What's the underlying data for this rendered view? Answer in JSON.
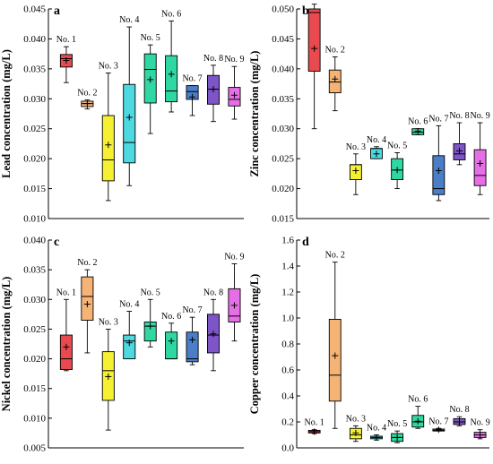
{
  "chart_data": [
    {
      "panel": "a",
      "type": "box",
      "ylabel": "Lead concentration (mg/L)",
      "ylim": [
        0.01,
        0.045
      ],
      "yticks": [
        "0.010",
        "0.015",
        "0.020",
        "0.025",
        "0.030",
        "0.035",
        "0.040",
        "0.045"
      ],
      "categories": [
        "No. 1",
        "No. 2",
        "No. 3",
        "No. 4",
        "No. 5",
        "No. 6",
        "No. 7",
        "No. 8",
        "No. 9"
      ],
      "boxes": [
        {
          "min": 0.0327,
          "q1": 0.0353,
          "median": 0.0367,
          "q3": 0.0374,
          "max": 0.0387,
          "mean": 0.0364,
          "color": "#e84a4f"
        },
        {
          "min": 0.0283,
          "q1": 0.0287,
          "median": 0.0292,
          "q3": 0.0296,
          "max": 0.0298,
          "mean": 0.0292,
          "color": "#f5b376"
        },
        {
          "min": 0.013,
          "q1": 0.0163,
          "median": 0.0198,
          "q3": 0.0272,
          "max": 0.0343,
          "mean": 0.0223,
          "color": "#f5f032"
        },
        {
          "min": 0.0155,
          "q1": 0.0193,
          "median": 0.0227,
          "q3": 0.0324,
          "max": 0.042,
          "mean": 0.0269,
          "color": "#4ed8e0"
        },
        {
          "min": 0.0242,
          "q1": 0.0293,
          "median": 0.0349,
          "q3": 0.0375,
          "max": 0.039,
          "mean": 0.0332,
          "color": "#2fd8a2"
        },
        {
          "min": 0.0278,
          "q1": 0.0295,
          "median": 0.0313,
          "q3": 0.0372,
          "max": 0.043,
          "mean": 0.0341,
          "color": "#2fd8a2"
        },
        {
          "min": 0.0272,
          "q1": 0.0299,
          "median": 0.0312,
          "q3": 0.0322,
          "max": 0.0322,
          "mean": 0.0303,
          "color": "#4a7ec8"
        },
        {
          "min": 0.0262,
          "q1": 0.0291,
          "median": 0.0316,
          "q3": 0.0339,
          "max": 0.0356,
          "mean": 0.0316,
          "color": "#7d55c7"
        },
        {
          "min": 0.0266,
          "q1": 0.0288,
          "median": 0.0299,
          "q3": 0.0319,
          "max": 0.0354,
          "mean": 0.0306,
          "color": "#e66ee6"
        }
      ]
    },
    {
      "panel": "b",
      "type": "box",
      "ylabel": "Zinc concentration (mg/L)",
      "ylim": [
        0.015,
        0.05
      ],
      "yticks": [
        "0.015",
        "0.020",
        "0.025",
        "0.030",
        "0.035",
        "0.040",
        "0.045",
        "0.050"
      ],
      "categories": [
        "No. 1",
        "No. 2",
        "No. 3",
        "No. 4",
        "No. 5",
        "No. 6",
        "No. 7",
        "No. 8",
        "No. 9"
      ],
      "boxes": [
        {
          "min": 0.03,
          "q1": 0.0396,
          "median": 0.0494,
          "q3": 0.05,
          "max": 0.0508,
          "mean": 0.0434,
          "color": "#e84a4f"
        },
        {
          "min": 0.033,
          "q1": 0.036,
          "median": 0.0378,
          "q3": 0.0398,
          "max": 0.042,
          "mean": 0.0383,
          "color": "#f5b376"
        },
        {
          "min": 0.019,
          "q1": 0.0215,
          "median": 0.024,
          "q3": 0.024,
          "max": 0.0258,
          "mean": 0.023,
          "color": "#f5f032"
        },
        {
          "min": 0.025,
          "q1": 0.025,
          "median": 0.0267,
          "q3": 0.0267,
          "max": 0.027,
          "mean": 0.0258,
          "color": "#4ed8e0"
        },
        {
          "min": 0.02,
          "q1": 0.0215,
          "median": 0.0231,
          "q3": 0.025,
          "max": 0.026,
          "mean": 0.0231,
          "color": "#2fd8a2"
        },
        {
          "min": 0.029,
          "q1": 0.029,
          "median": 0.0294,
          "q3": 0.03,
          "max": 0.03,
          "mean": 0.0296,
          "color": "#2fd8a2"
        },
        {
          "min": 0.018,
          "q1": 0.019,
          "median": 0.02,
          "q3": 0.0255,
          "max": 0.0305,
          "mean": 0.023,
          "color": "#4a7ec8"
        },
        {
          "min": 0.024,
          "q1": 0.0248,
          "median": 0.0258,
          "q3": 0.0275,
          "max": 0.031,
          "mean": 0.0263,
          "color": "#7d55c7"
        },
        {
          "min": 0.019,
          "q1": 0.0205,
          "median": 0.0222,
          "q3": 0.0265,
          "max": 0.031,
          "mean": 0.0242,
          "color": "#e66ee6"
        }
      ]
    },
    {
      "panel": "c",
      "type": "box",
      "ylabel": "Nickel concentration (mg/L)",
      "ylim": [
        0.005,
        0.04
      ],
      "yticks": [
        "0.005",
        "0.010",
        "0.015",
        "0.020",
        "0.025",
        "0.030",
        "0.035",
        "0.040"
      ],
      "categories": [
        "No. 1",
        "No. 2",
        "No. 3",
        "No. 4",
        "No. 5",
        "No. 6",
        "No. 7",
        "No. 8",
        "No. 9"
      ],
      "boxes": [
        {
          "min": 0.018,
          "q1": 0.0182,
          "median": 0.02,
          "q3": 0.024,
          "max": 0.03,
          "mean": 0.022,
          "color": "#e84a4f"
        },
        {
          "min": 0.021,
          "q1": 0.0265,
          "median": 0.0305,
          "q3": 0.0338,
          "max": 0.035,
          "mean": 0.0292,
          "color": "#f5b376"
        },
        {
          "min": 0.008,
          "q1": 0.013,
          "median": 0.018,
          "q3": 0.0212,
          "max": 0.025,
          "mean": 0.017,
          "color": "#f5f032"
        },
        {
          "min": 0.02,
          "q1": 0.02,
          "median": 0.023,
          "q3": 0.024,
          "max": 0.028,
          "mean": 0.0227,
          "color": "#4ed8e0"
        },
        {
          "min": 0.022,
          "q1": 0.023,
          "median": 0.0255,
          "q3": 0.0262,
          "max": 0.03,
          "mean": 0.0255,
          "color": "#2fd8a2"
        },
        {
          "min": 0.02,
          "q1": 0.02,
          "median": 0.02,
          "q3": 0.0245,
          "max": 0.026,
          "mean": 0.023,
          "color": "#2fd8a2"
        },
        {
          "min": 0.019,
          "q1": 0.0195,
          "median": 0.02,
          "q3": 0.0245,
          "max": 0.027,
          "mean": 0.0232,
          "color": "#4a7ec8"
        },
        {
          "min": 0.018,
          "q1": 0.021,
          "median": 0.024,
          "q3": 0.0275,
          "max": 0.03,
          "mean": 0.0242,
          "color": "#7d55c7"
        },
        {
          "min": 0.023,
          "q1": 0.0262,
          "median": 0.0272,
          "q3": 0.0318,
          "max": 0.036,
          "mean": 0.029,
          "color": "#e66ee6"
        }
      ]
    },
    {
      "panel": "d",
      "type": "box",
      "ylabel": "Copper concentration (mg/L)",
      "ylim": [
        0.0,
        1.6
      ],
      "yticks": [
        "0.0",
        "0.2",
        "0.4",
        "0.6",
        "0.8",
        "1.0",
        "1.2",
        "1.4",
        "1.6"
      ],
      "categories": [
        "No. 1",
        "No. 2",
        "No. 3",
        "No. 4",
        "No. 5",
        "No. 6",
        "No. 7",
        "No. 8",
        "No. 9"
      ],
      "boxes": [
        {
          "min": 0.11,
          "q1": 0.115,
          "median": 0.125,
          "q3": 0.135,
          "max": 0.14,
          "mean": 0.125,
          "color": "#e84a4f"
        },
        {
          "min": 0.15,
          "q1": 0.36,
          "median": 0.56,
          "q3": 0.99,
          "max": 1.43,
          "mean": 0.71,
          "color": "#f5b376"
        },
        {
          "min": 0.05,
          "q1": 0.07,
          "median": 0.1,
          "q3": 0.15,
          "max": 0.17,
          "mean": 0.115,
          "color": "#f5f032"
        },
        {
          "min": 0.06,
          "q1": 0.07,
          "median": 0.08,
          "q3": 0.09,
          "max": 0.1,
          "mean": 0.08,
          "color": "#4ed8e0"
        },
        {
          "min": 0.04,
          "q1": 0.05,
          "median": 0.08,
          "q3": 0.11,
          "max": 0.13,
          "mean": 0.08,
          "color": "#2fd8a2"
        },
        {
          "min": 0.15,
          "q1": 0.16,
          "median": 0.2,
          "q3": 0.25,
          "max": 0.32,
          "mean": 0.205,
          "color": "#2fd8a2"
        },
        {
          "min": 0.13,
          "q1": 0.13,
          "median": 0.135,
          "q3": 0.145,
          "max": 0.15,
          "mean": 0.14,
          "color": "#4a7ec8"
        },
        {
          "min": 0.17,
          "q1": 0.18,
          "median": 0.2,
          "q3": 0.225,
          "max": 0.24,
          "mean": 0.2,
          "color": "#7d55c7"
        },
        {
          "min": 0.07,
          "q1": 0.08,
          "median": 0.1,
          "q3": 0.12,
          "max": 0.14,
          "mean": 0.1,
          "color": "#e66ee6"
        }
      ]
    }
  ]
}
